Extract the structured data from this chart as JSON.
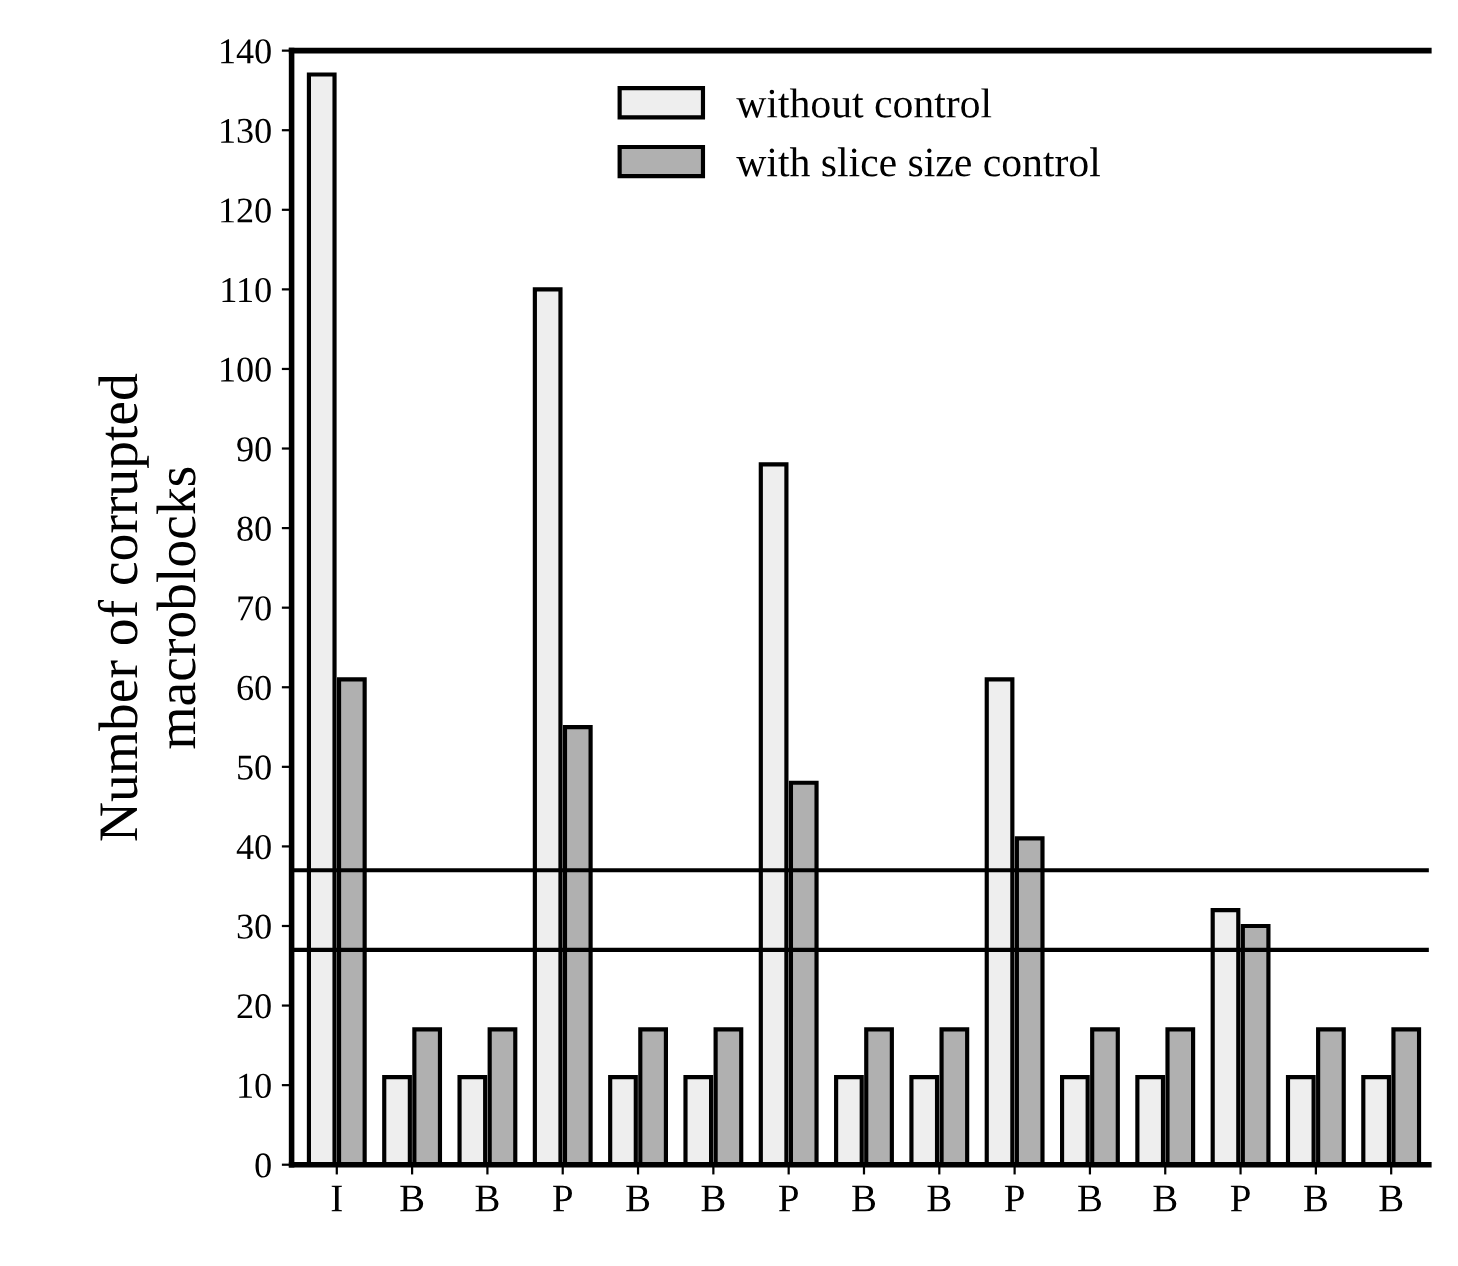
{
  "chart_data": {
    "type": "bar",
    "ylabel": "Number of corrupted\nmacroblocks",
    "categories": [
      "I",
      "B",
      "B",
      "P",
      "B",
      "B",
      "P",
      "B",
      "B",
      "P",
      "B",
      "B",
      "P",
      "B",
      "B"
    ],
    "series": [
      {
        "name": "without control",
        "color": "#eeeeee",
        "values": [
          137,
          11,
          11,
          110,
          11,
          11,
          88,
          11,
          11,
          61,
          11,
          11,
          32,
          11,
          11
        ]
      },
      {
        "name": "with slice size control",
        "color": "#b0b0b0",
        "values": [
          61,
          17,
          17,
          55,
          17,
          17,
          48,
          17,
          17,
          41,
          17,
          17,
          30,
          17,
          17
        ]
      }
    ],
    "ylim": [
      0,
      140
    ],
    "yticks": [
      0,
      10,
      20,
      30,
      40,
      50,
      60,
      70,
      80,
      90,
      100,
      110,
      120,
      130,
      140
    ],
    "ref_lines": [
      {
        "axis": "y",
        "value": 37,
        "color": "#000000"
      },
      {
        "axis": "y",
        "value": 27,
        "color": "#000000"
      }
    ],
    "legend": "top",
    "grid": false
  }
}
